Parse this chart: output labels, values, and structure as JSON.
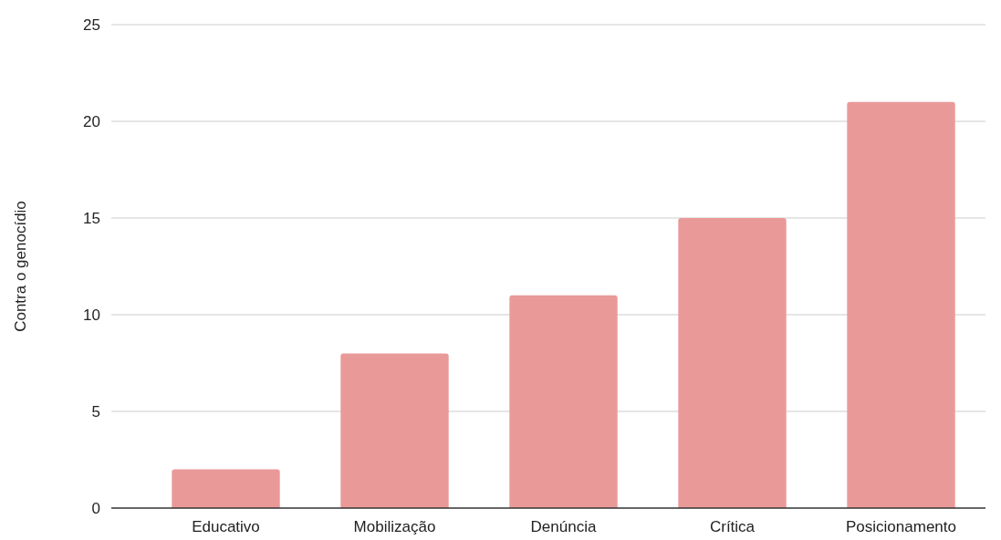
{
  "chart_data": {
    "type": "bar",
    "ylabel": "Contra o genocídio",
    "categories": [
      "Educativo",
      "Mobilização",
      "Denúncia",
      "Crítica",
      "Posicionamento"
    ],
    "values": [
      2,
      8,
      11,
      15,
      21
    ],
    "color": "#ea9999",
    "ylim": [
      0,
      25
    ],
    "yticks": [
      0,
      5,
      10,
      15,
      20,
      25
    ],
    "grid": "y"
  }
}
